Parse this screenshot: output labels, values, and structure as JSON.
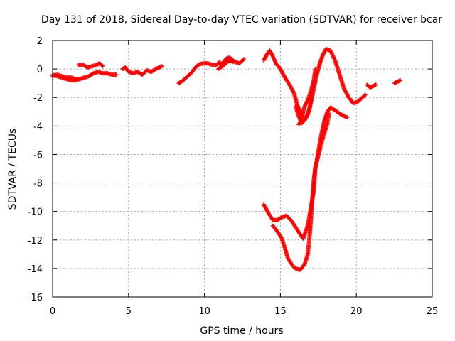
{
  "chart_data": {
    "type": "scatter",
    "title": "Day 131 of 2018, Sidereal Day-to-day VTEC variation (SDTVAR) for receiver bcar",
    "xlabel": "GPS time / hours",
    "ylabel": "SDTVAR / TECUs",
    "xlim": [
      0,
      25
    ],
    "ylim": [
      -16,
      2
    ],
    "xticks": [
      "0",
      "5",
      "10",
      "15",
      "20",
      "25"
    ],
    "yticks": [
      "2",
      "0",
      "-2",
      "-4",
      "-6",
      "-8",
      "-10",
      "-12",
      "-14",
      "-16"
    ],
    "grid": true,
    "marker": "+",
    "color": "#ff0000",
    "series": [
      {
        "segments": [
          [
            [
              0.0,
              -0.5
            ],
            [
              0.3,
              -0.4
            ],
            [
              0.6,
              -0.5
            ],
            [
              0.9,
              -0.6
            ],
            [
              1.2,
              -0.6
            ],
            [
              1.5,
              -0.7
            ],
            [
              1.8,
              -0.7
            ],
            [
              2.1,
              -0.6
            ],
            [
              2.4,
              -0.5
            ],
            [
              2.7,
              -0.3
            ],
            [
              3.0,
              -0.2
            ],
            [
              3.3,
              -0.3
            ],
            [
              3.6,
              -0.3
            ],
            [
              3.9,
              -0.4
            ],
            [
              4.2,
              -0.4
            ]
          ],
          [
            [
              0.0,
              -0.4
            ],
            [
              0.3,
              -0.5
            ],
            [
              0.6,
              -0.6
            ],
            [
              0.9,
              -0.7
            ],
            [
              1.2,
              -0.8
            ],
            [
              1.5,
              -0.8
            ],
            [
              1.8,
              -0.7
            ]
          ],
          [
            [
              1.7,
              0.3
            ],
            [
              2.0,
              0.3
            ],
            [
              2.3,
              0.1
            ],
            [
              2.6,
              0.2
            ],
            [
              2.9,
              0.3
            ],
            [
              3.1,
              0.4
            ],
            [
              3.3,
              0.2
            ]
          ],
          [
            [
              4.6,
              0.0
            ],
            [
              4.8,
              0.1
            ],
            [
              5.0,
              -0.2
            ],
            [
              5.3,
              -0.3
            ],
            [
              5.6,
              -0.2
            ],
            [
              5.9,
              -0.4
            ],
            [
              6.2,
              -0.1
            ],
            [
              6.5,
              -0.2
            ],
            [
              6.8,
              0.0
            ],
            [
              7.0,
              0.1
            ],
            [
              7.2,
              0.2
            ]
          ],
          [
            [
              8.3,
              -1.0
            ],
            [
              8.6,
              -0.8
            ],
            [
              8.9,
              -0.5
            ],
            [
              9.2,
              -0.2
            ],
            [
              9.4,
              0.1
            ],
            [
              9.6,
              0.3
            ],
            [
              9.9,
              0.4
            ],
            [
              10.2,
              0.4
            ],
            [
              10.5,
              0.3
            ],
            [
              10.8,
              0.3
            ],
            [
              11.0,
              0.5
            ]
          ],
          [
            [
              10.9,
              0.0
            ],
            [
              11.2,
              0.2
            ],
            [
              11.5,
              0.5
            ],
            [
              11.7,
              0.6
            ],
            [
              11.9,
              0.5
            ]
          ],
          [
            [
              11.0,
              0.3
            ],
            [
              11.2,
              0.4
            ],
            [
              11.4,
              0.7
            ],
            [
              11.6,
              0.8
            ],
            [
              11.8,
              0.7
            ],
            [
              12.0,
              0.5
            ],
            [
              12.3,
              0.4
            ],
            [
              12.6,
              0.7
            ]
          ],
          [
            [
              13.9,
              0.6
            ],
            [
              14.1,
              1.0
            ],
            [
              14.3,
              1.3
            ],
            [
              14.5,
              0.9
            ],
            [
              14.7,
              0.4
            ],
            [
              15.0,
              0.0
            ],
            [
              15.3,
              -0.6
            ],
            [
              15.6,
              -1.1
            ],
            [
              15.9,
              -1.7
            ],
            [
              16.1,
              -2.5
            ],
            [
              16.3,
              -3.0
            ],
            [
              16.5,
              -3.5
            ],
            [
              16.7,
              -3.4
            ],
            [
              16.9,
              -2.9
            ],
            [
              17.0,
              -2.3
            ],
            [
              17.1,
              -1.6
            ],
            [
              17.2,
              -0.8
            ],
            [
              17.3,
              0.0
            ]
          ],
          [
            [
              16.0,
              -2.6
            ],
            [
              16.2,
              -3.3
            ],
            [
              16.4,
              -3.8
            ],
            [
              16.6,
              -3.6
            ],
            [
              16.8,
              -3.2
            ],
            [
              17.0,
              -2.4
            ],
            [
              17.2,
              -1.4
            ],
            [
              17.4,
              -0.4
            ],
            [
              17.6,
              0.4
            ],
            [
              17.8,
              1.0
            ],
            [
              18.0,
              1.4
            ],
            [
              18.3,
              1.3
            ],
            [
              18.6,
              0.6
            ],
            [
              18.9,
              -0.4
            ],
            [
              19.2,
              -1.4
            ],
            [
              19.5,
              -2.0
            ],
            [
              19.8,
              -2.4
            ],
            [
              20.1,
              -2.3
            ],
            [
              20.4,
              -2.0
            ],
            [
              20.6,
              -1.8
            ]
          ],
          [
            [
              16.2,
              -3.9
            ],
            [
              16.4,
              -3.6
            ],
            [
              16.5,
              -3.0
            ],
            [
              16.6,
              -2.6
            ],
            [
              16.8,
              -2.2
            ],
            [
              17.0,
              -1.6
            ],
            [
              17.2,
              -0.8
            ]
          ],
          [
            [
              20.7,
              -1.1
            ],
            [
              20.9,
              -1.3
            ],
            [
              21.1,
              -1.2
            ],
            [
              21.3,
              -1.1
            ]
          ],
          [
            [
              22.5,
              -1.0
            ],
            [
              22.7,
              -0.9
            ],
            [
              22.9,
              -0.8
            ]
          ],
          [
            [
              13.9,
              -9.5
            ],
            [
              14.2,
              -10.1
            ],
            [
              14.5,
              -10.6
            ],
            [
              14.8,
              -10.6
            ],
            [
              15.1,
              -10.4
            ],
            [
              15.4,
              -10.3
            ],
            [
              15.7,
              -10.6
            ],
            [
              16.0,
              -11.1
            ],
            [
              16.3,
              -11.6
            ],
            [
              16.5,
              -11.9
            ],
            [
              16.8,
              -11.0
            ],
            [
              17.0,
              -9.8
            ],
            [
              17.2,
              -8.5
            ],
            [
              17.3,
              -7.0
            ],
            [
              17.5,
              -5.8
            ],
            [
              17.7,
              -4.6
            ],
            [
              17.9,
              -3.6
            ],
            [
              18.1,
              -3.0
            ],
            [
              18.3,
              -2.7
            ],
            [
              18.6,
              -2.9
            ],
            [
              19.0,
              -3.2
            ],
            [
              19.4,
              -3.4
            ]
          ],
          [
            [
              14.5,
              -11.0
            ],
            [
              14.8,
              -11.4
            ],
            [
              15.1,
              -11.9
            ],
            [
              15.3,
              -12.6
            ],
            [
              15.5,
              -13.3
            ],
            [
              15.8,
              -13.8
            ],
            [
              16.0,
              -14.0
            ],
            [
              16.3,
              -14.1
            ],
            [
              16.6,
              -13.7
            ],
            [
              16.8,
              -13.0
            ],
            [
              16.9,
              -12.0
            ],
            [
              17.0,
              -10.7
            ],
            [
              17.1,
              -9.2
            ],
            [
              17.2,
              -7.8
            ],
            [
              17.3,
              -6.9
            ],
            [
              17.5,
              -6.1
            ],
            [
              17.7,
              -5.2
            ],
            [
              17.9,
              -4.5
            ],
            [
              18.1,
              -3.8
            ],
            [
              18.2,
              -3.1
            ]
          ]
        ]
      }
    ]
  }
}
